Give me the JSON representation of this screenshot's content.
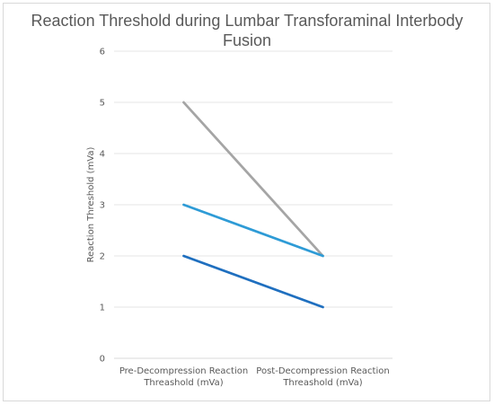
{
  "chart_data": {
    "type": "line",
    "title_line1": "Reaction Threshold during Lumbar Transforaminal Interbody",
    "title_line2": "Fusion",
    "ylabel": "Reaction Threshold (mVa)",
    "xlabel": "",
    "ylim": [
      0,
      6
    ],
    "yticks": [
      "0",
      "1",
      "2",
      "3",
      "4",
      "5",
      "6"
    ],
    "categories": [
      [
        "Pre-Decompression Reaction",
        "Threashold (mVa)"
      ],
      [
        "Post-Decompression Reaction",
        "Threashold (mVa)"
      ]
    ],
    "grid": true,
    "legend": "none",
    "series": [
      {
        "values": [
          5,
          2
        ],
        "color": "#a5a5a5"
      },
      {
        "values": [
          3,
          2
        ],
        "color": "#2e9bd6"
      },
      {
        "values": [
          2,
          1
        ],
        "color": "#1f6fbf"
      }
    ]
  }
}
